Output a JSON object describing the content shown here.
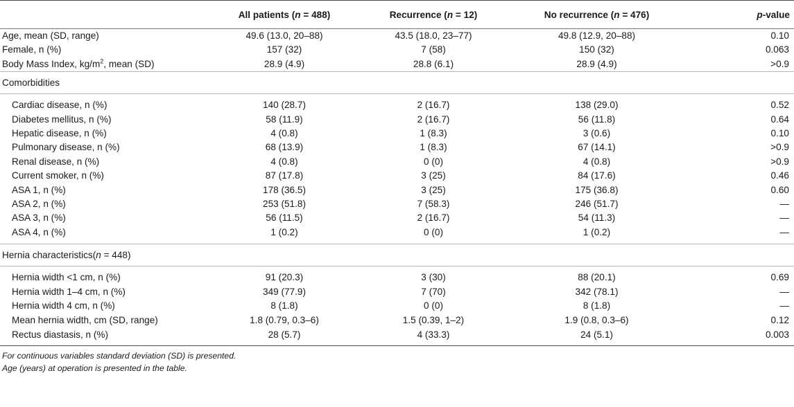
{
  "headers": [
    {
      "pre": "",
      "italic": "",
      "post": ""
    },
    {
      "pre": "All patients (",
      "italic": "n",
      "post": " = 488)"
    },
    {
      "pre": "Recurrence (",
      "italic": "n",
      "post": " = 12)"
    },
    {
      "pre": "No recurrence (",
      "italic": "n",
      "post": " = 476)"
    },
    {
      "pre": "",
      "italic": "p",
      "post": "-value"
    }
  ],
  "top_rows": [
    {
      "label": "Age, mean (SD, range)",
      "all": "49.6 (13.0, 20–88)",
      "rec": "43.5 (18.0, 23–77)",
      "norec": "49.8 (12.9, 20–88)",
      "p": "0.10"
    },
    {
      "label": "Female, n (%)",
      "all": "157 (32)",
      "rec": "7 (58)",
      "norec": "150 (32)",
      "p": "0.063"
    },
    {
      "label_pre": "Body Mass Index, kg/m",
      "label_sup": "2",
      "label_post": ", mean (SD)",
      "all": "28.9 (4.9)",
      "rec": "28.8 (6.1)",
      "norec": "28.9 (4.9)",
      "p": ">0.9"
    }
  ],
  "section_comorbidities": {
    "title": "Comorbidities",
    "rows": [
      {
        "label": "Cardiac disease, n (%)",
        "all": "140 (28.7)",
        "rec": "2 (16.7)",
        "norec": "138 (29.0)",
        "p": "0.52"
      },
      {
        "label": "Diabetes mellitus, n (%)",
        "all": "58 (11.9)",
        "rec": "2 (16.7)",
        "norec": "56 (11.8)",
        "p": "0.64"
      },
      {
        "label": "Hepatic disease, n (%)",
        "all": "4 (0.8)",
        "rec": "1 (8.3)",
        "norec": "3 (0.6)",
        "p": "0.10"
      },
      {
        "label": "Pulmonary disease, n (%)",
        "all": "68 (13.9)",
        "rec": "1 (8.3)",
        "norec": "67 (14.1)",
        "p": ">0.9"
      },
      {
        "label": "Renal disease, n (%)",
        "all": "4 (0.8)",
        "rec": "0 (0)",
        "norec": "4 (0.8)",
        "p": ">0.9"
      },
      {
        "label": "Current smoker, n (%)",
        "all": "87 (17.8)",
        "rec": "3 (25)",
        "norec": "84 (17.6)",
        "p": "0.46"
      },
      {
        "label": "ASA 1, n (%)",
        "all": "178 (36.5)",
        "rec": "3 (25)",
        "norec": "175 (36.8)",
        "p": "0.60"
      },
      {
        "label": "ASA 2, n (%)",
        "all": "253 (51.8)",
        "rec": "7 (58.3)",
        "norec": "246 (51.7)",
        "p": "—"
      },
      {
        "label": "ASA 3, n (%)",
        "all": "56 (11.5)",
        "rec": "2 (16.7)",
        "norec": "54 (11.3)",
        "p": "—"
      },
      {
        "label": "ASA 4, n (%)",
        "all": "1 (0.2)",
        "rec": "0 (0)",
        "norec": "1 (0.2)",
        "p": "—"
      }
    ]
  },
  "section_hernia": {
    "title_pre": "Hernia characteristics(",
    "title_italic": "n",
    "title_post": " = 448)",
    "rows": [
      {
        "label": "Hernia width <1 cm, n (%)",
        "all": "91 (20.3)",
        "rec": "3 (30)",
        "norec": "88 (20.1)",
        "p": "0.69"
      },
      {
        "label": "Hernia width 1–4 cm, n (%)",
        "all": "349 (77.9)",
        "rec": "7 (70)",
        "norec": "342 (78.1)",
        "p": "—"
      },
      {
        "label": "Hernia width 4 cm, n (%)",
        "all": "8 (1.8)",
        "rec": "0 (0)",
        "norec": "8 (1.8)",
        "p": "—"
      },
      {
        "label": "Mean hernia width, cm (SD, range)",
        "all": "1.8 (0.79, 0.3–6)",
        "rec": "1.5 (0.39, 1–2)",
        "norec": "1.9 (0.8, 0.3–6)",
        "p": "0.12"
      },
      {
        "label": "Rectus diastasis, n (%)",
        "all": "28 (5.7)",
        "rec": "4 (33.3)",
        "norec": "24 (5.1)",
        "p": "0.003"
      }
    ]
  },
  "footnotes": [
    "For continuous variables standard deviation (SD) is presented.",
    "Age (years) at operation is presented in the table."
  ]
}
